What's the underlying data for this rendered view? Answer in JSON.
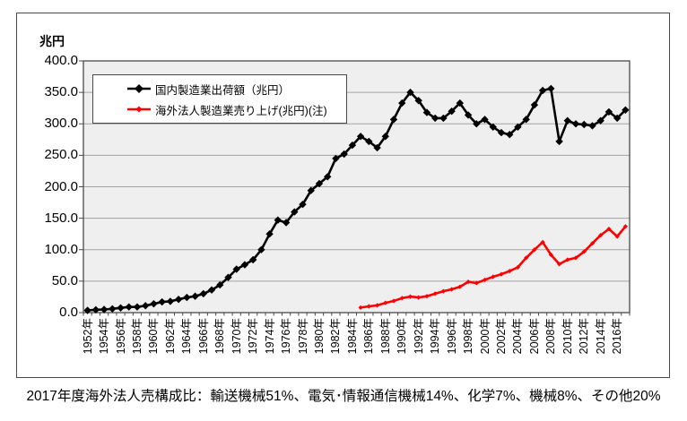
{
  "page": {
    "background": "#ffffff",
    "caption": "2017年度海外法人売構成比：輸送機械51%、電気･情報通信機械14%、化学7%、機械8%、その他20%"
  },
  "chart_data": {
    "type": "line",
    "title": "",
    "unit_label": "兆円",
    "xlabel": "",
    "ylabel": "兆円",
    "ylim": [
      0,
      400
    ],
    "ytick_step": 50,
    "grid": "horizontal",
    "plot_background": "#efefef",
    "gridline_color": "#a3a3a3",
    "axis_color": "#4a4a4a",
    "legend_position": "top-left-inside",
    "x_range": [
      1952,
      2017
    ],
    "y_tick_labels": [
      "400.0",
      "350.0",
      "300.0",
      "250.0",
      "200.0",
      "150.0",
      "100.0",
      "50.0",
      "0.0"
    ],
    "x_tick_labels": [
      "1952年",
      "1954年",
      "1956年",
      "1958年",
      "1960年",
      "1962年",
      "1964年",
      "1966年",
      "1968年",
      "1970年",
      "1972年",
      "1974年",
      "1976年",
      "1978年",
      "1980年",
      "1982年",
      "1984年",
      "1986年",
      "1988年",
      "1990年",
      "1992年",
      "1994年",
      "1996年",
      "1998年",
      "2000年",
      "2002年",
      "2004年",
      "2006年",
      "2008年",
      "2010年",
      "2012年",
      "2014年",
      "2016年"
    ],
    "series": [
      {
        "name": "国内製造業出荷額（兆円）",
        "color": "#000000",
        "marker": "diamond",
        "marker_size": 4.2,
        "start_year": 1952,
        "values": [
          3.5,
          4.5,
          5,
          6,
          7.5,
          9,
          9,
          11,
          14,
          17,
          18,
          21,
          24,
          26,
          30,
          36,
          44,
          56,
          69,
          76,
          84,
          100,
          125,
          147,
          143,
          160,
          172,
          194,
          205,
          216,
          245,
          252,
          266,
          280,
          272,
          262,
          280,
          307,
          333,
          350,
          337,
          318,
          309,
          309,
          320,
          333,
          314,
          300,
          307,
          295,
          286,
          283,
          295,
          307,
          330,
          353,
          356,
          272,
          305,
          300,
          299,
          297,
          305,
          319,
          309,
          322
        ]
      },
      {
        "name": "海外法人製造業売り上げ(兆円)(注)",
        "color": "#ff0000",
        "marker": "diamond",
        "marker_size": 2.6,
        "start_year": 1985,
        "values": [
          8,
          10,
          11.5,
          15.5,
          18.5,
          23,
          25.5,
          24,
          26,
          30,
          34,
          37,
          41,
          49,
          47,
          52,
          57,
          61,
          66,
          72,
          87,
          100,
          112,
          92,
          77,
          84,
          87,
          97,
          110,
          123,
          133,
          121,
          137
        ]
      }
    ]
  }
}
